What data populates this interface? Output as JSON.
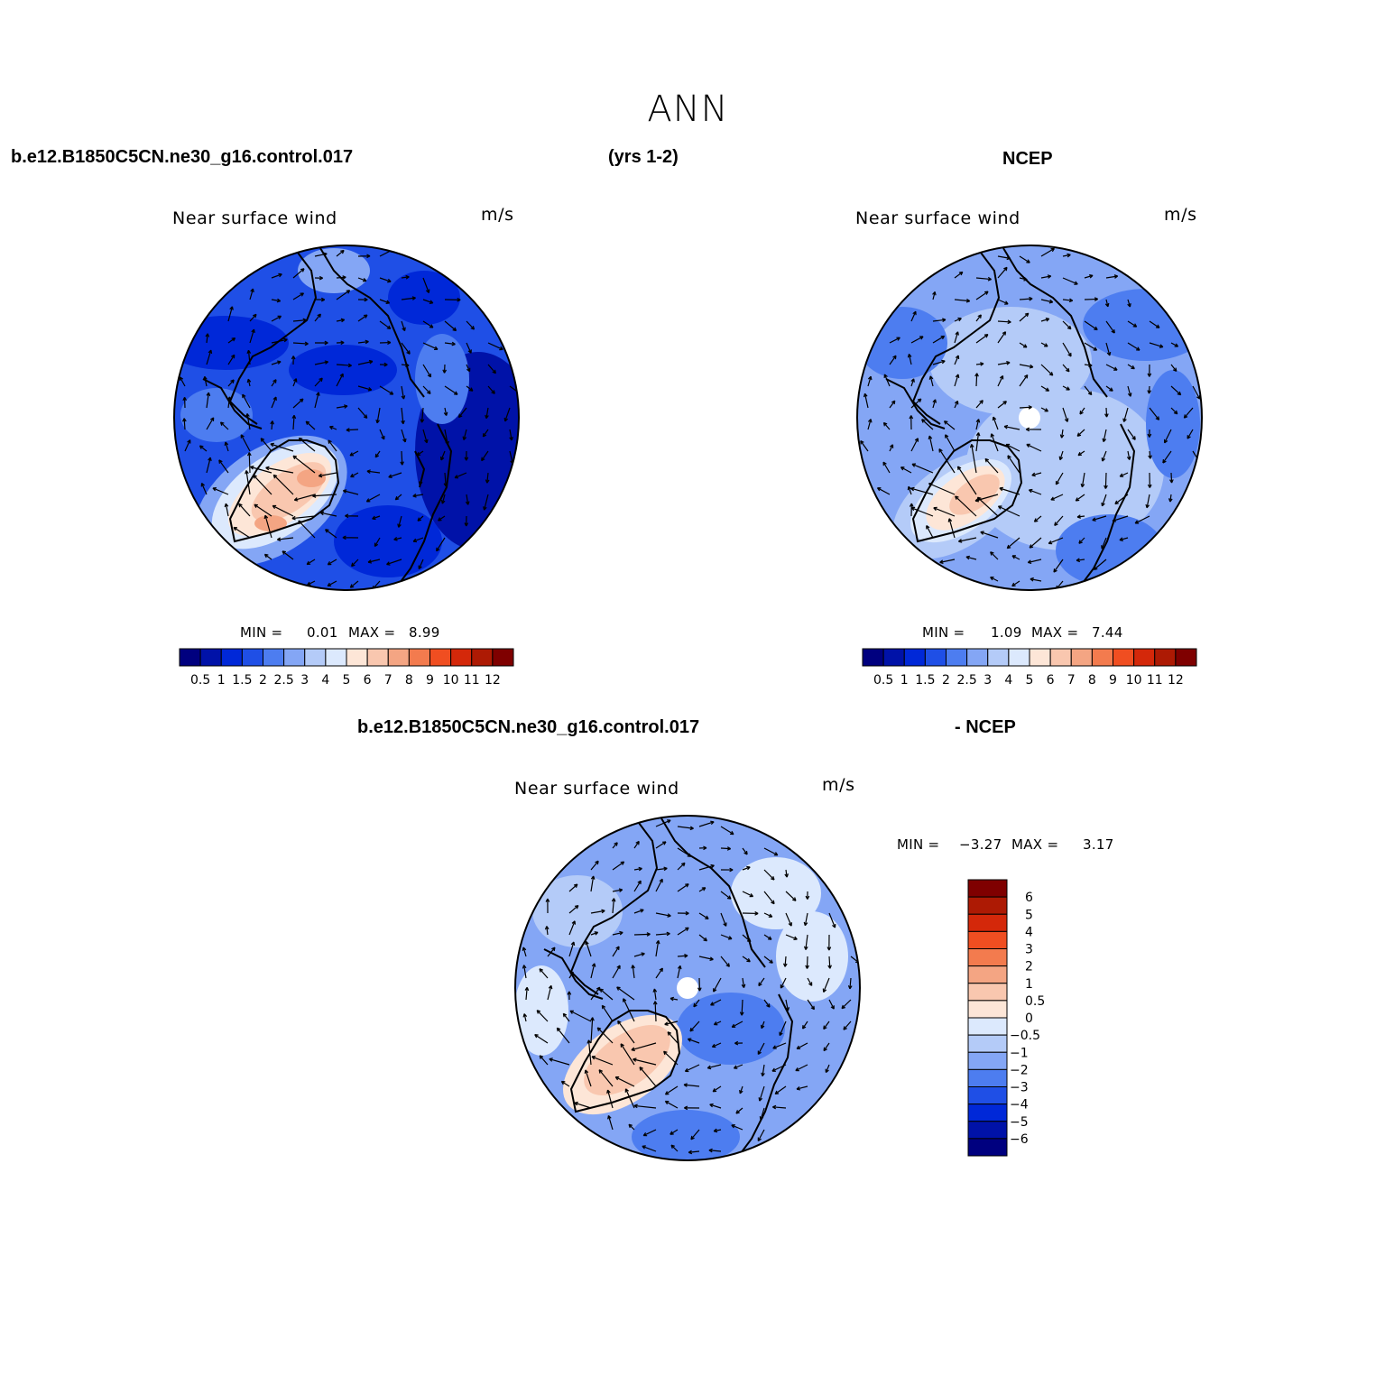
{
  "title": "ANN",
  "header": {
    "case": "b.e12.B1850C5CN.ne30_g16.control.017",
    "years": "(yrs 1-2)",
    "obs": "NCEP"
  },
  "diff_header": {
    "case": "b.e12.B1850C5CN.ne30_g16.control.017",
    "obs": "- NCEP"
  },
  "panels": [
    {
      "label": "Near surface wind",
      "units": "m/s",
      "min_label": "MIN =",
      "min": "0.01",
      "max_label": "MAX =",
      "max": "8.99",
      "colorbar": {
        "colors": [
          "#00007f",
          "#0012a8",
          "#0028d8",
          "#1f4fe6",
          "#4d7df0",
          "#84a6f5",
          "#b4cbf8",
          "#dce9fd",
          "#fde6d7",
          "#f9c7af",
          "#f4a583",
          "#f37b4e",
          "#f04e21",
          "#d4280a",
          "#ad1a04",
          "#7f0000"
        ],
        "ticks": [
          "0.5",
          "1",
          "1.5",
          "2",
          "2.5",
          "3",
          "4",
          "5",
          "6",
          "7",
          "8",
          "9",
          "10",
          "11",
          "12"
        ]
      }
    },
    {
      "label": "Near surface wind",
      "units": "m/s",
      "min_label": "MIN =",
      "min": "1.09",
      "max_label": "MAX =",
      "max": "7.44",
      "colorbar": {
        "colors": [
          "#00007f",
          "#0012a8",
          "#0028d8",
          "#1f4fe6",
          "#4d7df0",
          "#84a6f5",
          "#b4cbf8",
          "#dce9fd",
          "#fde6d7",
          "#f9c7af",
          "#f4a583",
          "#f37b4e",
          "#f04e21",
          "#d4280a",
          "#ad1a04",
          "#7f0000"
        ],
        "ticks": [
          "0.5",
          "1",
          "1.5",
          "2",
          "2.5",
          "3",
          "4",
          "5",
          "6",
          "7",
          "8",
          "9",
          "10",
          "11",
          "12"
        ]
      }
    },
    {
      "label": "Near surface wind",
      "units": "m/s",
      "min_label": "MIN =",
      "min": "−3.27",
      "max_label": "MAX =",
      "max": "3.17",
      "colorbar": {
        "colors": [
          "#7f0000",
          "#ad1a04",
          "#d4280a",
          "#f04e21",
          "#f37b4e",
          "#f4a583",
          "#f9c7af",
          "#fde6d7",
          "#dce9fd",
          "#b4cbf8",
          "#84a6f5",
          "#4d7df0",
          "#1f4fe6",
          "#0028d8",
          "#0012a8",
          "#00007f"
        ],
        "ticks": [
          "6",
          "5",
          "4",
          "3",
          "2",
          "1",
          "0.5",
          "0",
          "−0.5",
          "−1",
          "−2",
          "−3",
          "−4",
          "−5",
          "−6"
        ]
      }
    }
  ]
}
